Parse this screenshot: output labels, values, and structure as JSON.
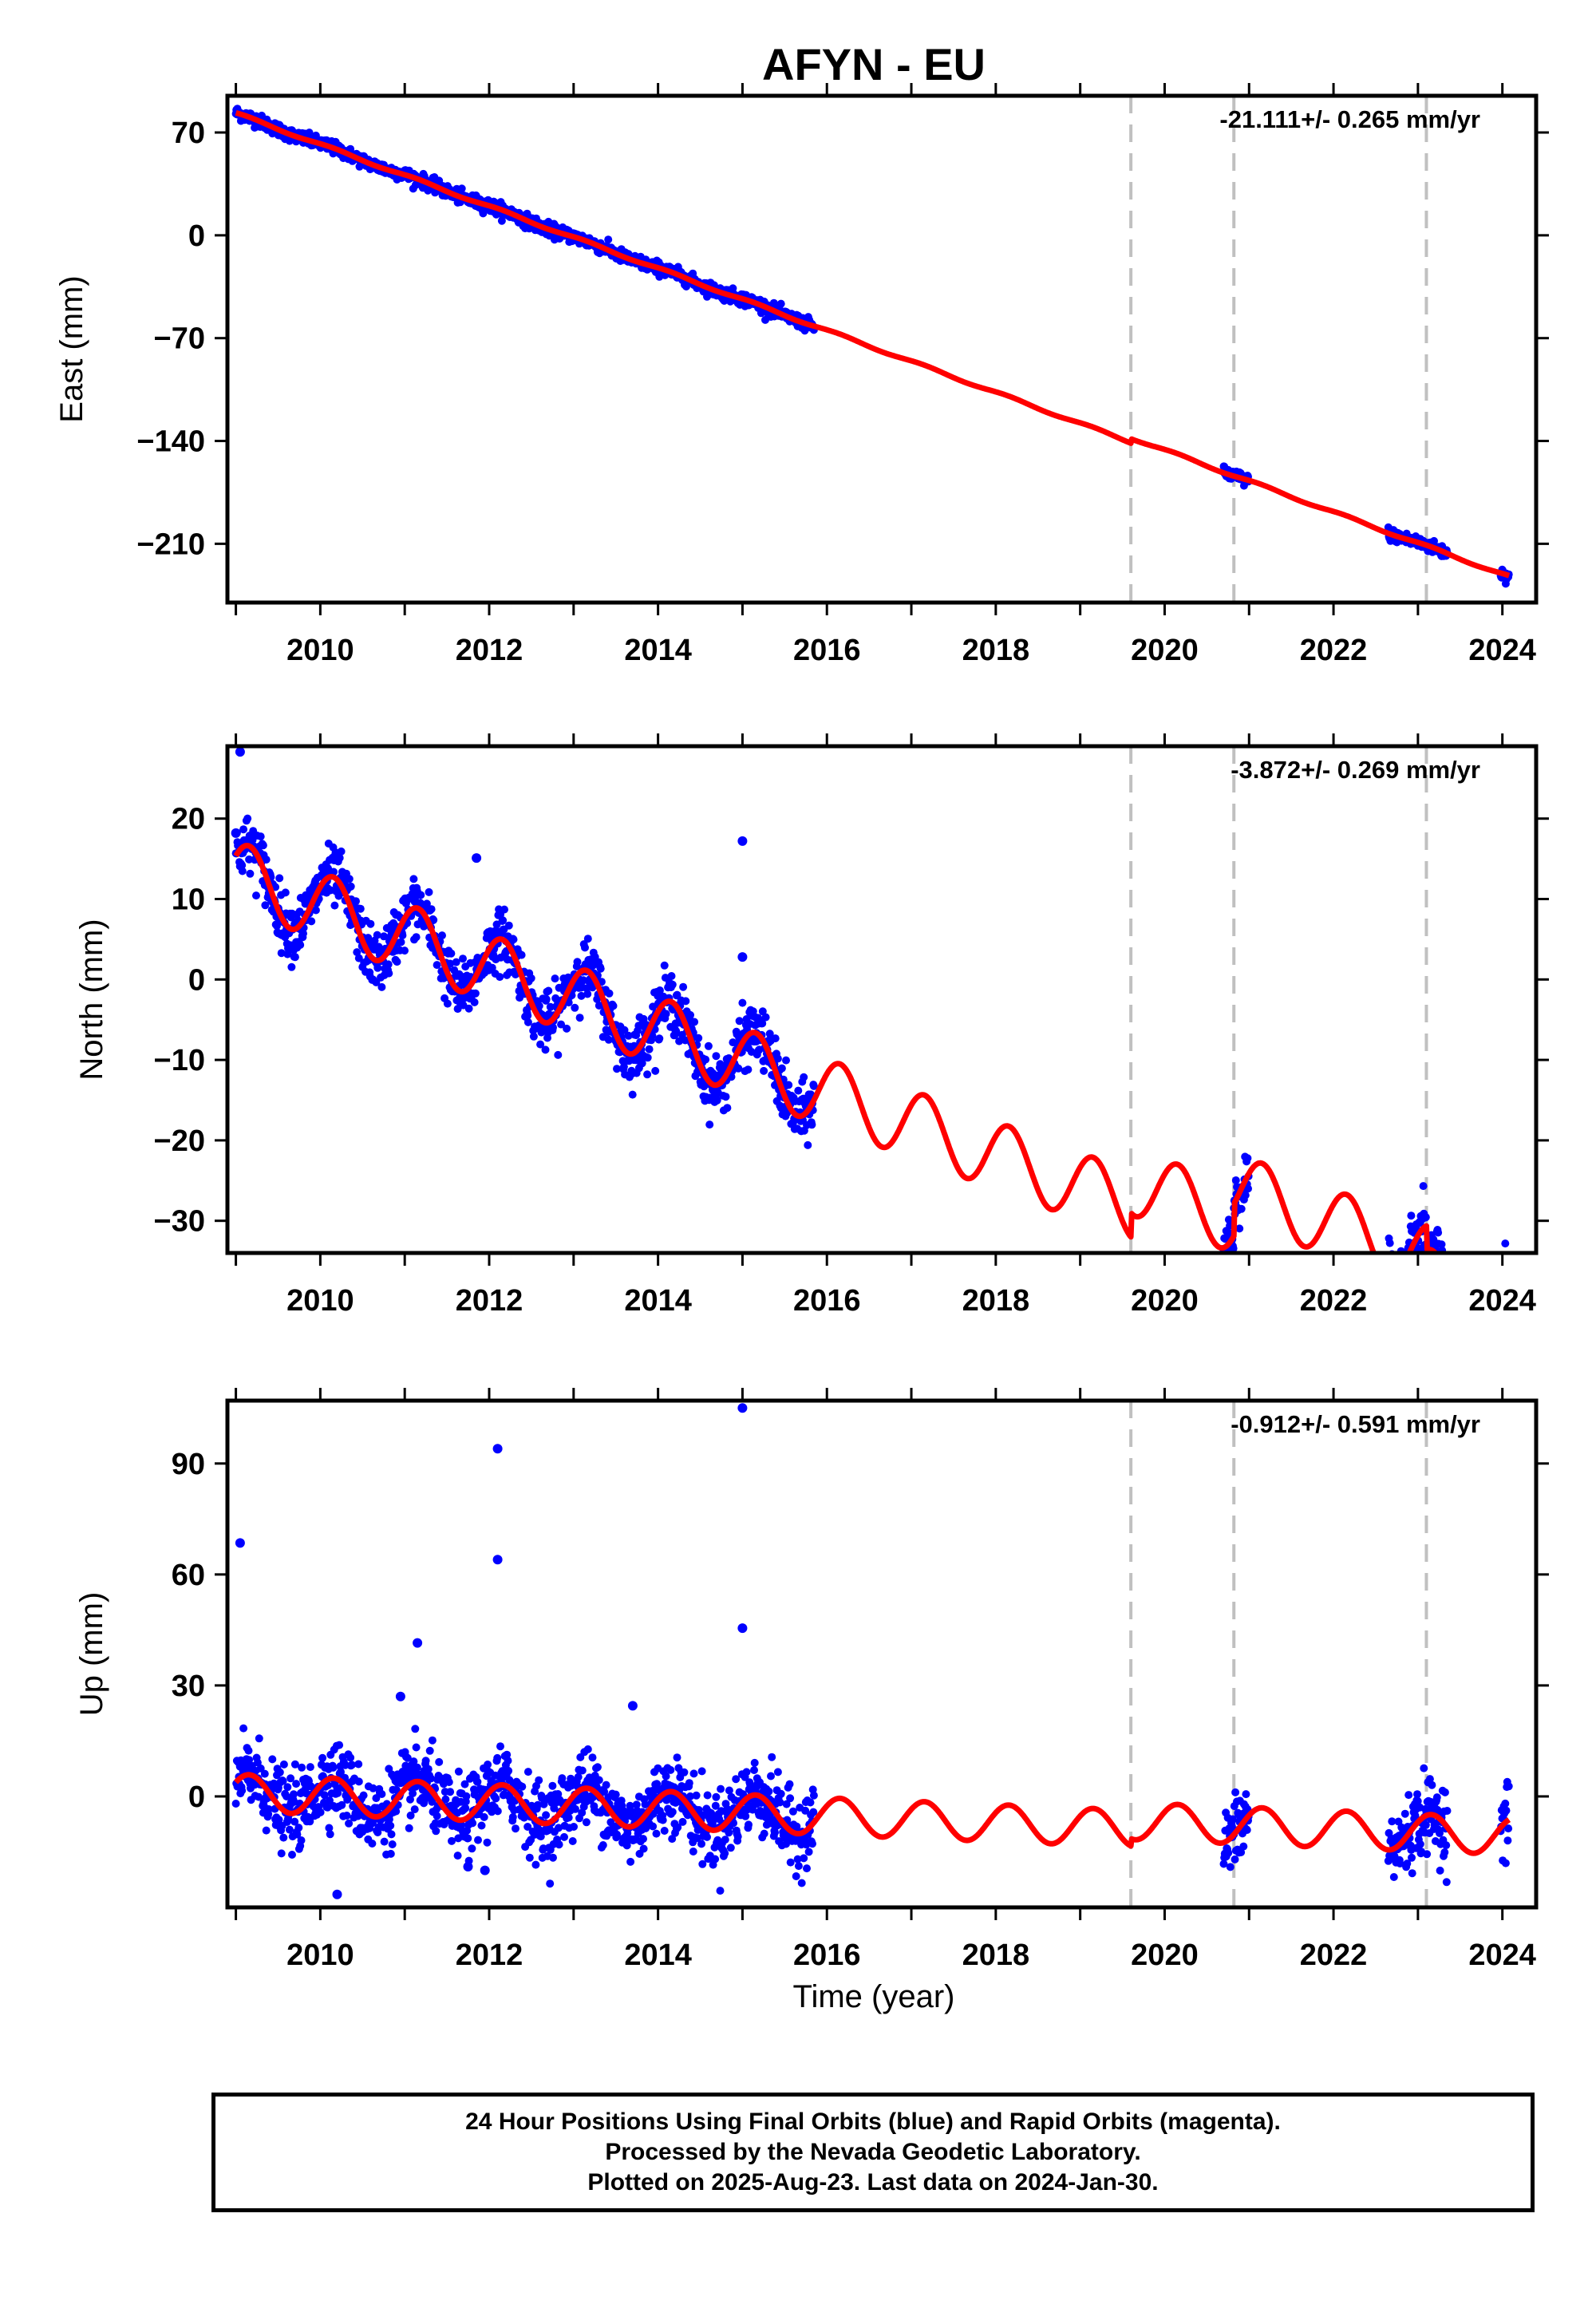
{
  "title": "AFYN - EU",
  "colors": {
    "data": "#0000ff",
    "model": "#ff0000",
    "offset_lines": "#c0c0c0",
    "axes": "#000000"
  },
  "x_axis": {
    "label": "Time (year)",
    "range": [
      2008.9,
      2024.4
    ],
    "ticks": [
      2010,
      2012,
      2014,
      2016,
      2018,
      2020,
      2022,
      2024
    ]
  },
  "offset_epochs": [
    2019.6,
    2020.82,
    2023.1
  ],
  "chart_data": [
    {
      "type": "scatter",
      "ylabel": "East (mm)",
      "rate": "-21.111+/- 0.265 mm/yr",
      "ylim": [
        -250,
        95
      ],
      "yticks": [
        70,
        0,
        -70,
        -140,
        -210
      ],
      "ytick_labels": [
        "70",
        "0",
        "−70",
        "−140",
        "−210"
      ],
      "trend": {
        "rate": -21.111,
        "intercept_year": 2009.0,
        "intercept_mm": 83
      },
      "model_offsets": [
        [
          2019.6,
          3
        ],
        [
          2020.82,
          0
        ],
        [
          2023.1,
          0
        ]
      ],
      "model_annual_amp": 0.8,
      "data_spans": [
        [
          2009.0,
          2015.85
        ],
        [
          2020.7,
          2021.0
        ],
        [
          2022.65,
          2023.35
        ],
        [
          2023.98,
          2024.08
        ]
      ],
      "data_scatter_sd": 2.2,
      "outliers": []
    },
    {
      "type": "scatter",
      "ylabel": "North (mm)",
      "rate": "-3.872+/- 0.269 mm/yr",
      "ylim": [
        -34,
        29
      ],
      "yticks": [
        20,
        10,
        0,
        -10,
        -20,
        -30
      ],
      "ytick_labels": [
        "20",
        "10",
        "0",
        "−10",
        "−20",
        "−30"
      ],
      "trend": {
        "rate": -3.872,
        "intercept_year": 2009.0,
        "intercept_mm": 13
      },
      "model_offsets": [
        [
          2019.6,
          3
        ],
        [
          2020.82,
          4
        ],
        [
          2023.1,
          -3
        ]
      ],
      "model_annual_amp": 4.2,
      "data_spans": [
        [
          2009.0,
          2015.85
        ],
        [
          2020.7,
          2021.0
        ],
        [
          2022.65,
          2023.35
        ],
        [
          2023.98,
          2024.08
        ]
      ],
      "data_scatter_sd": 1.8,
      "outliers": [
        [
          2009.05,
          28.3
        ],
        [
          2015.0,
          17.2
        ],
        [
          2015.0,
          2.8
        ],
        [
          2011.85,
          15.1
        ],
        [
          2009.0,
          18.2
        ]
      ]
    },
    {
      "type": "scatter",
      "ylabel": "Up (mm)",
      "rate": "-0.912+/- 0.591 mm/yr",
      "ylim": [
        -30,
        107
      ],
      "yticks": [
        90,
        60,
        30,
        0
      ],
      "ytick_labels": [
        "90",
        "60",
        "30",
        "0"
      ],
      "trend": {
        "rate": -0.912,
        "intercept_year": 2009.0,
        "intercept_mm": 1
      },
      "model_offsets": [
        [
          2019.6,
          2
        ],
        [
          2020.82,
          0
        ],
        [
          2023.1,
          0
        ]
      ],
      "model_annual_amp": 5.0,
      "data_spans": [
        [
          2009.0,
          2015.85
        ],
        [
          2020.7,
          2021.0
        ],
        [
          2022.65,
          2023.35
        ],
        [
          2023.98,
          2024.08
        ]
      ],
      "data_scatter_sd": 5.0,
      "outliers": [
        [
          2009.05,
          68.5
        ],
        [
          2012.1,
          94.0
        ],
        [
          2012.1,
          64.0
        ],
        [
          2015.0,
          105.0
        ],
        [
          2015.0,
          45.5
        ],
        [
          2011.15,
          41.5
        ],
        [
          2010.95,
          27.0
        ],
        [
          2010.2,
          -26.5
        ],
        [
          2011.75,
          -19.0
        ],
        [
          2011.95,
          -20.0
        ],
        [
          2013.7,
          24.5
        ]
      ]
    }
  ],
  "footer": {
    "line1": "24 Hour Positions Using Final Orbits (blue) and Rapid Orbits (magenta).",
    "line2": "Processed by the Nevada Geodetic Laboratory.",
    "line3": "Plotted on 2025-Aug-23. Last data on 2024-Jan-30."
  }
}
